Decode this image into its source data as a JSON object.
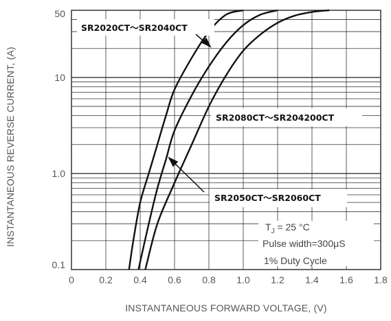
{
  "chart_data": {
    "type": "line",
    "xlabel": "INSTANTANEOUS FORWARD VOLTAGE, (V)",
    "ylabel": "INSTANTANEOUS REVERSE CURRENT, (A)",
    "xlim": [
      0,
      1.8
    ],
    "ylim": [
      0.1,
      50
    ],
    "yscale": "log",
    "grid": true,
    "x_ticks": [
      "0",
      "0.2",
      "0.4",
      "0.6",
      "0.8",
      "1.0",
      "1.2",
      "1.4",
      "1.6",
      "1.8"
    ],
    "y_ticks": [
      "0.1",
      "1.0",
      "10",
      "50"
    ],
    "series": [
      {
        "name": "SR2020CT~SR2040CT",
        "x": [
          0.335,
          0.36,
          0.4,
          0.45,
          0.5,
          0.55,
          0.6,
          0.7,
          0.8,
          0.9,
          1.0
        ],
        "y": [
          0.1,
          0.2,
          0.5,
          1.0,
          2.0,
          4.0,
          7.5,
          16,
          30,
          45,
          50
        ]
      },
      {
        "name": "SR2050CT~SR2060CT",
        "x": [
          0.39,
          0.45,
          0.5,
          0.55,
          0.6,
          0.7,
          0.8,
          0.9,
          1.0,
          1.1,
          1.2
        ],
        "y": [
          0.1,
          0.3,
          0.7,
          1.4,
          2.8,
          6.5,
          13,
          23,
          35,
          45,
          50
        ]
      },
      {
        "name": "SR2080CT~SR204200CT",
        "x": [
          0.43,
          0.5,
          0.6,
          0.7,
          0.8,
          0.9,
          1.0,
          1.1,
          1.2,
          1.3,
          1.4,
          1.5
        ],
        "y": [
          0.1,
          0.3,
          0.8,
          2.0,
          5.0,
          10.5,
          19,
          28,
          37,
          44,
          48,
          50
        ]
      }
    ],
    "annotations": {
      "label_1": "SR2020CT～SR2040CT",
      "label_2": "SR2080CT～SR204200CT",
      "label_3": "SR2050CT～SR2060CT",
      "condition_1": "T",
      "condition_1_sub": "J",
      "condition_1_rest": " = 25 °C",
      "condition_2": "Pulse width=300μS",
      "condition_3": "1% Duty Cycle"
    },
    "colors": {
      "curve": "#111111",
      "grid": "#333333",
      "frame": "#333333",
      "label_box": "#ffffff"
    }
  }
}
